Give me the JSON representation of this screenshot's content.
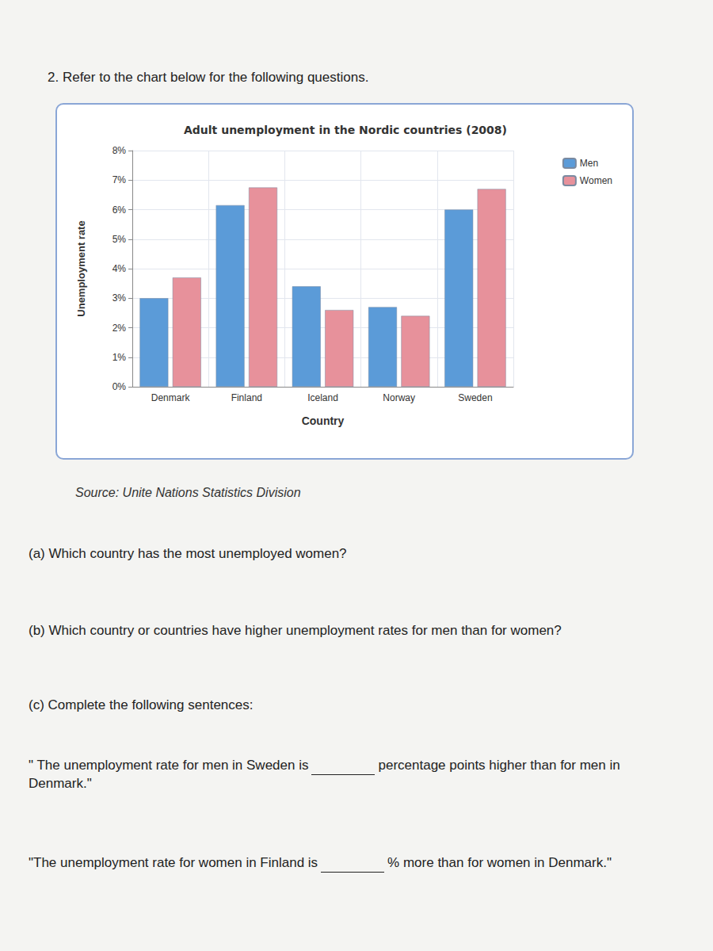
{
  "document": {
    "question": "2. Refer to the chart below for the following questions.",
    "source": "Source: Unite Nations Statistics Division",
    "part_a": "(a) Which country has the most unemployed women?",
    "part_b": "(b) Which country or countries have higher unemployment rates for men than for women?",
    "part_c": "(c) Complete the following sentences:",
    "sentence_1": {
      "before": "\" The unemployment rate for men in Sweden is",
      "after": "percentage points higher than for men in Denmark.\""
    },
    "sentence_2": {
      "before": "\"The unemployment rate for women in Finland is",
      "after": "% more than for women in Denmark.\""
    }
  },
  "chart_data": {
    "type": "bar",
    "title": "Adult unemployment in the Nordic countries (2008)",
    "x_label": "Country",
    "y_label": "Unemployment rate",
    "categories": [
      "Denmark",
      "Finland",
      "Iceland",
      "Norway",
      "Sweden"
    ],
    "series": [
      {
        "name": "Men",
        "color": "#5b9bd8",
        "values": [
          3.0,
          6.15,
          3.4,
          2.7,
          6.0
        ]
      },
      {
        "name": "Women",
        "color": "#e7919b",
        "values": [
          3.7,
          6.75,
          2.6,
          2.4,
          6.7
        ]
      }
    ],
    "ylim": [
      0,
      8
    ],
    "yticks": [
      {
        "value": 0,
        "label": "0%"
      },
      {
        "value": 1,
        "label": "1%"
      },
      {
        "value": 2,
        "label": "2%"
      },
      {
        "value": 3,
        "label": "3%"
      },
      {
        "value": 4,
        "label": "4%"
      },
      {
        "value": 5,
        "label": "5%"
      },
      {
        "value": 6,
        "label": "6%"
      },
      {
        "value": 7,
        "label": "7%"
      },
      {
        "value": 8,
        "label": "8%"
      }
    ],
    "grid": true,
    "legend": "upper right"
  }
}
